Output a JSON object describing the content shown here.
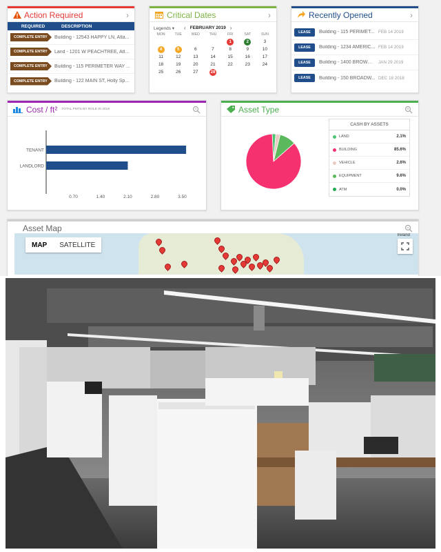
{
  "action_required": {
    "title": "Action Required",
    "headers": [
      "REQUIRED",
      "DESCRIPTION"
    ],
    "rows": [
      {
        "tag": "COMPLETE ENTRY",
        "desc": "Building - 12543 HAPPY LN, Atla..."
      },
      {
        "tag": "COMPLETE ENTRY",
        "desc": "Land - 1201 W PEACHTREE, Atl..."
      },
      {
        "tag": "COMPLETE ENTRY",
        "desc": "Building - 115 PERIMETER WAY ..."
      },
      {
        "tag": "COMPLETE ENTRY",
        "desc": "Building - 122 MAIN ST, Holly Sp..."
      }
    ]
  },
  "critical_dates": {
    "title": "Critical Dates",
    "legends_label": "Legends",
    "month_label": "FEBRUARY 2019",
    "day_headers": [
      "MON",
      "TUE",
      "WED",
      "THU",
      "FRI",
      "SAT",
      "SUN"
    ],
    "days": [
      "",
      "",
      "",
      "",
      "1",
      "2",
      "3",
      "4",
      "5",
      "6",
      "7",
      "8",
      "9",
      "10",
      "11",
      "12",
      "13",
      "14",
      "15",
      "16",
      "17",
      "18",
      "19",
      "20",
      "21",
      "22",
      "23",
      "24",
      "25",
      "26",
      "27",
      "28",
      "",
      "",
      ""
    ],
    "highlights": {
      "1": "#e53935",
      "2": "#2e7d32",
      "4": "#f5a623",
      "5": "#f5a623",
      "28": "#e53935"
    }
  },
  "recently_opened": {
    "title": "Recently Opened",
    "rows": [
      {
        "tag": "LEASE",
        "desc": "Building - 115 PERIMET...",
        "date": "FEB 14 2019"
      },
      {
        "tag": "LEASE",
        "desc": "Building - 1234 AMERIC...",
        "date": "FEB 14 2019"
      },
      {
        "tag": "LEASE",
        "desc": "Building - 1400 BROWN ...",
        "date": "JAN 29 2019"
      },
      {
        "tag": "LEASE",
        "desc": "Building - 150 BROADW...",
        "date": "DEC 18 2018"
      }
    ]
  },
  "cost": {
    "title": "Cost / ft²",
    "subtitle": "TOTAL PMTS BY ROLE IN 2019"
  },
  "chart_data": {
    "type": "bar",
    "orientation": "horizontal",
    "categories": [
      "TENANT",
      "LANDLORD"
    ],
    "values": [
      3.6,
      2.1
    ],
    "x_ticks": [
      "0.70",
      "1.40",
      "2.10",
      "2.80",
      "3.50"
    ],
    "xlim": [
      0,
      3.9
    ],
    "color": "#1f4e8a"
  },
  "asset_type": {
    "title": "Asset Type",
    "table_header": "CASH BY ASSETS",
    "rows": [
      {
        "name": "LAND",
        "value": "2.1%",
        "pct": 2.1,
        "color": "#4cc471"
      },
      {
        "name": "BUILDING",
        "value": "85.6%",
        "pct": 85.6,
        "color": "#f5316f"
      },
      {
        "name": "VEHICLE",
        "value": "2.6%",
        "pct": 2.6,
        "color": "#e8cbc2"
      },
      {
        "name": "EQUIPMENT",
        "value": "9.6%",
        "pct": 9.6,
        "color": "#5cb85c"
      },
      {
        "name": "ATM",
        "value": "0.0%",
        "pct": 0.0,
        "color": "#22aa55"
      }
    ]
  },
  "asset_map": {
    "title": "Asset Map",
    "map_label": "MAP",
    "satellite_label": "SATELLITE",
    "ireland_label": "Ireland"
  },
  "colors": {
    "brand_blue": "#1f4e8a",
    "action_red": "#e53935",
    "calendar_green": "#7cb342",
    "recent_blue": "#1f4e8a",
    "cost_purple": "#9c27b0",
    "asset_green": "#4caf50"
  }
}
